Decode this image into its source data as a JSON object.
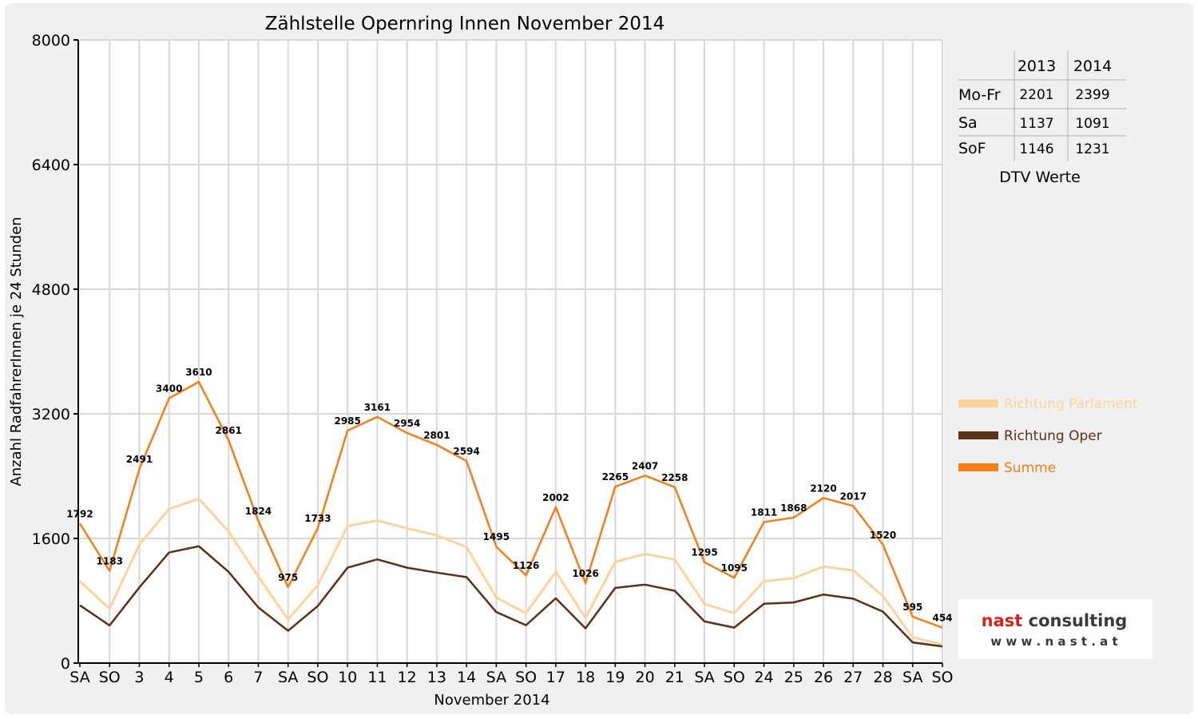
{
  "chart_data": {
    "type": "line",
    "title": "Zählstelle Opernring Innen November 2014",
    "xlabel": "November 2014",
    "ylabel": "Anzahl RadfahrerInnen je 24 Stunden",
    "ylim": [
      0,
      8000
    ],
    "yticks": [
      "0",
      "1600",
      "3200",
      "4800",
      "6400",
      "8000"
    ],
    "grid": true,
    "categories": [
      "SA",
      "SO",
      "3",
      "4",
      "5",
      "6",
      "7",
      "SA",
      "SO",
      "10",
      "11",
      "12",
      "13",
      "14",
      "SA",
      "SO",
      "17",
      "18",
      "19",
      "20",
      "21",
      "SA",
      "SO",
      "24",
      "25",
      "26",
      "27",
      "28",
      "SA",
      "SO"
    ],
    "category_colors": [
      "#000000",
      "#e00000",
      "#000000",
      "#000000",
      "#000000",
      "#000000",
      "#000000",
      "#000000",
      "#e00000",
      "#000000",
      "#000000",
      "#000000",
      "#000000",
      "#000000",
      "#000000",
      "#e00000",
      "#000000",
      "#000000",
      "#000000",
      "#000000",
      "#000000",
      "#000000",
      "#e00000",
      "#000000",
      "#000000",
      "#000000",
      "#000000",
      "#000000",
      "#000000",
      "#e00000"
    ],
    "series": [
      {
        "name": "Richtung Parlament",
        "color": "#fbd39e",
        "values": [
          1050,
          700,
          1520,
          1980,
          2110,
          1690,
          1110,
          560,
          1000,
          1760,
          1830,
          1730,
          1640,
          1490,
          840,
          640,
          1170,
          580,
          1300,
          1400,
          1330,
          760,
          640,
          1050,
          1090,
          1240,
          1190,
          860,
          330,
          240
        ]
      },
      {
        "name": "Richtung Oper",
        "color": "#5a3018",
        "values": [
          742,
          483,
          971,
          1420,
          1500,
          1171,
          714,
          415,
          733,
          1225,
          1331,
          1224,
          1161,
          1104,
          655,
          486,
          832,
          446,
          965,
          1007,
          928,
          535,
          455,
          761,
          778,
          880,
          827,
          660,
          265,
          214
        ]
      },
      {
        "name": "Summe",
        "color": "#f37e1a",
        "values": [
          1792,
          1183,
          2491,
          3400,
          3610,
          2861,
          1824,
          975,
          1733,
          2985,
          3161,
          2954,
          2801,
          2594,
          1495,
          1126,
          2002,
          1026,
          2265,
          2407,
          2258,
          1295,
          1095,
          1811,
          1868,
          2120,
          2017,
          1520,
          595,
          454
        ]
      }
    ],
    "data_labels": [
      "1792",
      "1183",
      "2491",
      "3400",
      "3610",
      "2861",
      "1824",
      "975",
      "1733",
      "2985",
      "3161",
      "2954",
      "2801",
      "2594",
      "1495",
      "1126",
      "2002",
      "1026",
      "2265",
      "2407",
      "2258",
      "1295",
      "1095",
      "1811",
      "1868",
      "2120",
      "2017",
      "1520",
      "595",
      "454"
    ],
    "legend_position": "right"
  },
  "dtv_table": {
    "headers": [
      "2013",
      "2014"
    ],
    "rows": [
      {
        "label": "Mo-Fr",
        "v2013": "2201",
        "v2014": "2399"
      },
      {
        "label": "Sa",
        "v2013": "1137",
        "v2014": "1091"
      },
      {
        "label": "SoF",
        "v2013": "1146",
        "v2014": "1231"
      }
    ],
    "caption": "DTV Werte"
  },
  "logo": {
    "name": "nast consulting",
    "url_text": "w w w . n a s t . a t"
  }
}
